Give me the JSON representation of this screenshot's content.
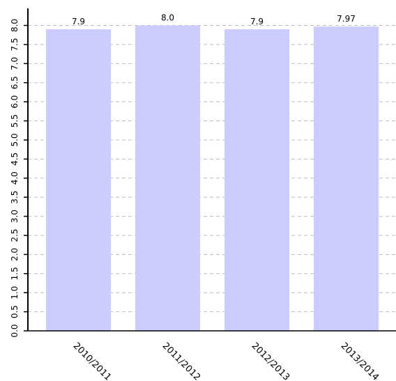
{
  "chart_data": {
    "type": "bar",
    "categories": [
      "2010/2011",
      "2011/2012",
      "2012/2013",
      "2013/2014"
    ],
    "values": [
      7.9,
      8.0,
      7.9,
      7.97
    ],
    "value_labels": [
      "7.9",
      "8.0",
      "7.9",
      "7.97"
    ],
    "title": "",
    "xlabel": "",
    "ylabel": "",
    "ylim": [
      0,
      8.0
    ],
    "yticks": [
      0.0,
      0.5,
      1.0,
      1.5,
      2.0,
      2.5,
      3.0,
      3.5,
      4.0,
      4.5,
      5.0,
      5.5,
      6.0,
      6.5,
      7.0,
      7.5,
      8.0
    ],
    "ytick_labels": [
      "0.0",
      "0.5",
      "1.0",
      "1.5",
      "2.0",
      "2.5",
      "3.0",
      "3.5",
      "4.0",
      "4.5",
      "5.0",
      "5.5",
      "6.0",
      "6.5",
      "7.0",
      "7.5",
      "8.0"
    ],
    "grid": true,
    "bar_color": "#ccccff",
    "grid_color": "#bbbbbb",
    "axis_color": "#000000"
  }
}
